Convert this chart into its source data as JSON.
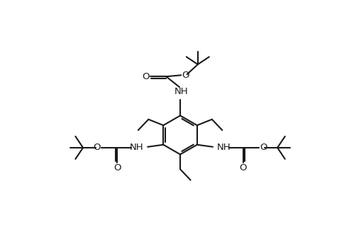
{
  "bg_color": "#ffffff",
  "line_color": "#1a1a1a",
  "line_width": 1.5,
  "font_size": 9.5,
  "fig_width": 4.92,
  "fig_height": 3.48,
  "dpi": 100,
  "xlim": [
    0,
    10
  ],
  "ylim": [
    0,
    7
  ]
}
